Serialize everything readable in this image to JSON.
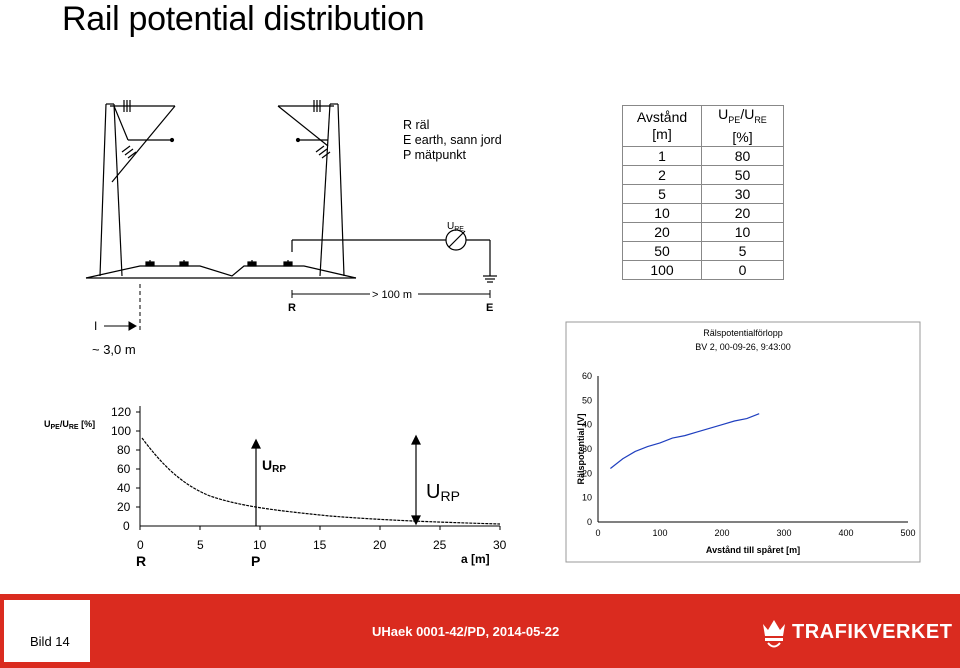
{
  "title": "Rail potential distribution",
  "legend": [
    "R räl",
    "E earth, sann jord",
    "P mätpunkt"
  ],
  "diagram": {
    "ure_label": "U",
    "ure_sub": "RE",
    "distance_label": "> 100 m",
    "r_label": "R",
    "e_label": "E",
    "mark_label": "I",
    "spacing_label": "~ 3,0 m"
  },
  "table": {
    "header_col1_line1": "Avstånd",
    "header_col1_line2": "[m]",
    "header_col2_line1_a": "U",
    "header_col2_line1_sub_a": "PE",
    "header_col2_line1_b": "/U",
    "header_col2_line1_sub_b": "RE",
    "header_col2_line2": "[%]",
    "rows": [
      {
        "distance": "1",
        "percent": "80"
      },
      {
        "distance": "2",
        "percent": "50"
      },
      {
        "distance": "5",
        "percent": "30"
      },
      {
        "distance": "10",
        "percent": "20"
      },
      {
        "distance": "20",
        "percent": "10"
      },
      {
        "distance": "50",
        "percent": "5"
      },
      {
        "distance": "100",
        "percent": "0"
      }
    ]
  },
  "left_chart": {
    "ylabel": "U",
    "ylabel_sub_a": "PE",
    "ylabel_mid": "/U",
    "ylabel_sub_b": "RE",
    "ylabel_unit": " [%]",
    "yticks": [
      "120",
      "100",
      "80",
      "60",
      "40",
      "20",
      "0"
    ],
    "xticks": [
      "0",
      "5",
      "10",
      "15",
      "20",
      "25",
      "30"
    ],
    "xlabel": "a [m]",
    "r_label": "R",
    "p_label": "P",
    "urp_small": "U",
    "urp_small_sub": "RP",
    "urp_large": "U",
    "urp_large_sub": "RP"
  },
  "chart_data": {
    "type": "line",
    "title": "Rälspotentialförlopp",
    "subtitle": "BV 2, 00-09-26, 9:43:00",
    "xlabel": "Avstånd till spåret [m]",
    "ylabel": "Rälspotential [V]",
    "xlim": [
      0,
      500
    ],
    "ylim": [
      0,
      60
    ],
    "xticks": [
      "0",
      "100",
      "200",
      "300",
      "400",
      "500"
    ],
    "yticks": [
      "0",
      "10",
      "20",
      "30",
      "40",
      "50",
      "60"
    ],
    "series": [
      {
        "x": [
          20,
          40,
          60,
          80,
          100,
          120,
          140,
          160,
          180,
          200,
          220,
          240,
          260
        ],
        "y": [
          22,
          26,
          29,
          31,
          32.5,
          34.5,
          35.5,
          37,
          38.5,
          40,
          41.5,
          42.5,
          44.5
        ]
      }
    ]
  },
  "footer": {
    "bild": "Bild 14",
    "reference": "UHaek 0001-42/PD, 2014-05-22",
    "brand": "TRAFIKVERKET"
  }
}
